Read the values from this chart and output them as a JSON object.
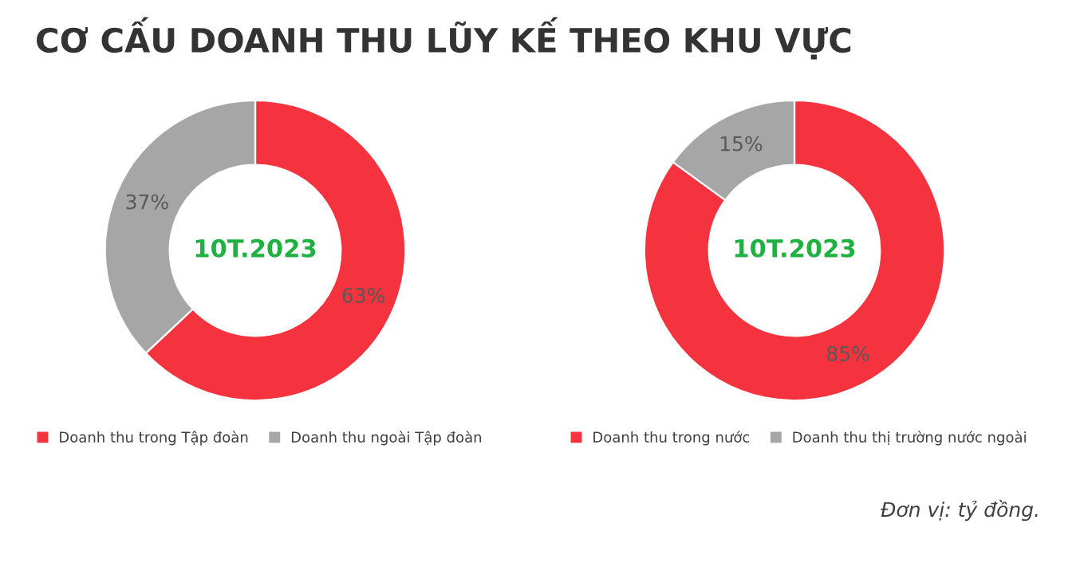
{
  "chart_data": [
    {
      "type": "donut",
      "title": "CƠ CẤU DOANH THU LŨY KẾ THEO KHU VỰC",
      "categories": [
        "Doanh thu trong Tập đoàn",
        "Doanh thu ngoài Tập đoàn"
      ],
      "values": [
        63,
        37
      ],
      "colors": [
        "#f4333f",
        "#a6a6a6"
      ],
      "value_labels": [
        "63%",
        "37%"
      ],
      "legend": "bottom",
      "annotations": [
        "10T.2023"
      ]
    },
    {
      "type": "donut",
      "categories": [
        "Doanh thu trong nước",
        "Doanh thu thị trường nước ngoài"
      ],
      "values": [
        85,
        15
      ],
      "colors": [
        "#f4333f",
        "#a6a6a6"
      ],
      "value_labels": [
        "85%",
        "15%"
      ],
      "legend": "bottom",
      "annotations": [
        "10T.2023",
        "Đơn vị: tỷ đồng."
      ]
    }
  ]
}
